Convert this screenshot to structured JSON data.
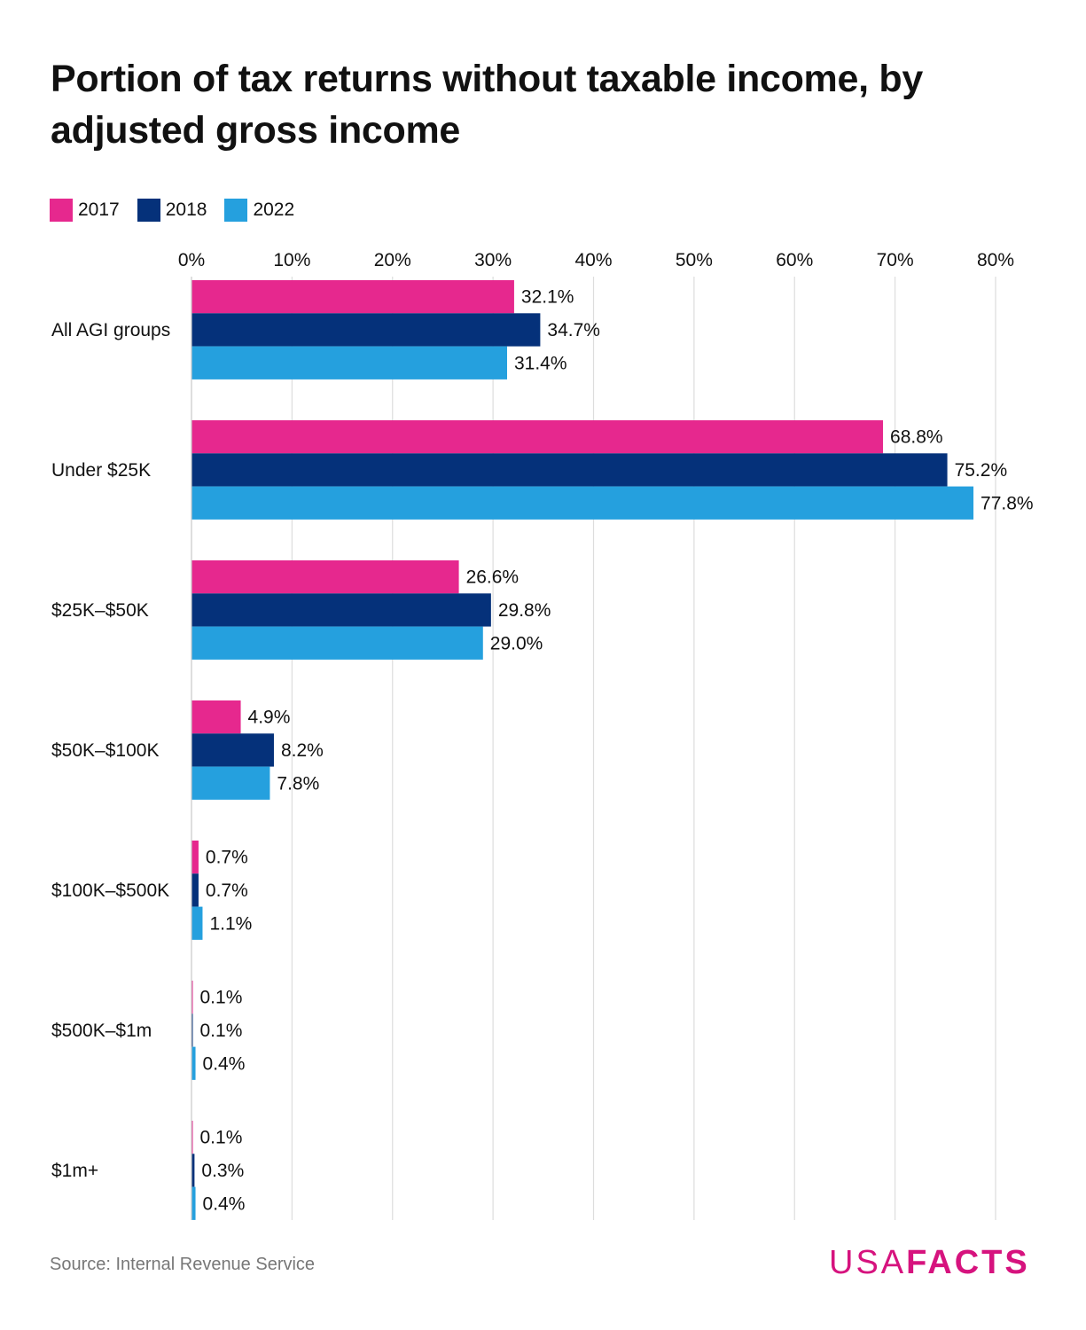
{
  "chart_data": {
    "type": "bar",
    "orientation": "horizontal",
    "title": "Portion of tax returns without taxable income, by adjusted gross income",
    "categories": [
      "All AGI groups",
      "Under $25K",
      "$25K–$50K",
      "$50K–$100K",
      "$100K–$500K",
      "$500K–$1m",
      "$1m+"
    ],
    "series": [
      {
        "name": "2017",
        "color": "#e6288e",
        "values": [
          32.1,
          68.8,
          26.6,
          4.9,
          0.7,
          0.1,
          0.1
        ],
        "labels": [
          "32.1%",
          "68.8%",
          "26.6%",
          "4.9%",
          "0.7%",
          "0.1%",
          "0.1%"
        ]
      },
      {
        "name": "2018",
        "color": "#05317a",
        "values": [
          34.7,
          75.2,
          29.8,
          8.2,
          0.7,
          0.1,
          0.3
        ],
        "labels": [
          "34.7%",
          "75.2%",
          "29.8%",
          "8.2%",
          "0.7%",
          "0.1%",
          "0.3%"
        ]
      },
      {
        "name": "2022",
        "color": "#25a0de",
        "values": [
          31.4,
          77.8,
          29.0,
          7.8,
          1.1,
          0.4,
          0.4
        ],
        "labels": [
          "31.4%",
          "77.8%",
          "29.0%",
          "7.8%",
          "1.1%",
          "0.4%",
          "0.4%"
        ]
      }
    ],
    "xlim": [
      0,
      80
    ],
    "xticks": [
      0,
      10,
      20,
      30,
      40,
      50,
      60,
      70,
      80
    ],
    "xtick_labels": [
      "0%",
      "10%",
      "20%",
      "30%",
      "40%",
      "50%",
      "60%",
      "70%",
      "80%"
    ],
    "xaxis_position": "top",
    "grid": "vertical",
    "legend_placement": "top-left"
  },
  "footer": {
    "source": "Source: Internal Revenue Service",
    "logo_text": "USAFACTS",
    "logo_usa": "USA",
    "logo_facts": "FACTS",
    "logo_color": "#d6137e"
  }
}
